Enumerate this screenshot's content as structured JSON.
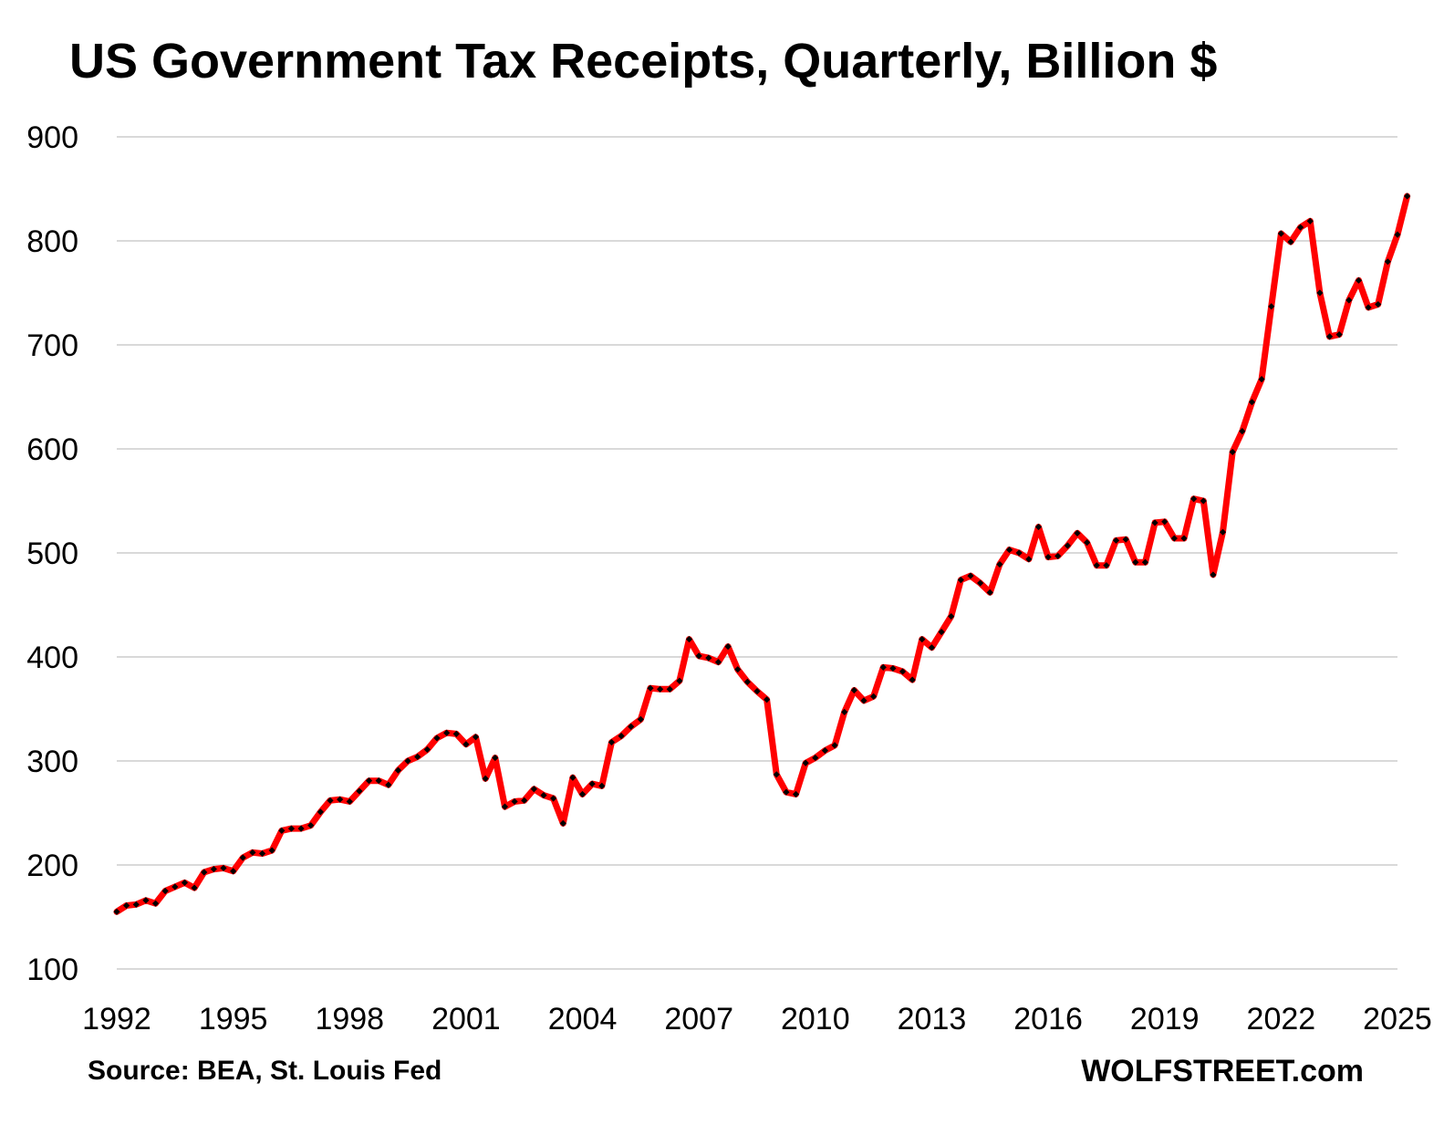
{
  "chart_data": {
    "type": "line",
    "title": "US Government Tax Receipts, Quarterly, Billion $",
    "xlabel": "",
    "ylabel": "",
    "ylim": [
      100,
      900
    ],
    "yticks": [
      "100",
      "200",
      "300",
      "400",
      "500",
      "600",
      "700",
      "800",
      "900"
    ],
    "xticks": [
      "1992",
      "1995",
      "1998",
      "2001",
      "2004",
      "2007",
      "2010",
      "2013",
      "2016",
      "2019",
      "2022",
      "2025"
    ],
    "x_start": "1992 Q1",
    "x_end": "2025 Q1",
    "grid": "horizontal",
    "line_color": "#ff0000",
    "marker_color": "#000000",
    "series": [
      {
        "values": [
          155,
          161,
          162,
          166,
          163,
          175,
          179,
          183,
          178,
          193,
          196,
          197,
          194,
          207,
          212,
          211,
          214,
          233,
          235,
          235,
          238,
          251,
          262,
          263,
          261,
          271,
          281,
          281,
          277,
          291,
          300,
          304,
          311,
          322,
          327,
          326,
          316,
          323,
          283,
          303,
          256,
          261,
          262,
          273,
          267,
          264,
          240,
          284,
          268,
          278,
          276,
          318,
          324,
          333,
          340,
          370,
          369,
          369,
          377,
          417,
          401,
          399,
          395,
          410,
          388,
          376,
          367,
          359,
          287,
          270,
          268,
          298,
          303,
          310,
          315,
          347,
          368,
          358,
          362,
          390,
          389,
          386,
          378,
          417,
          409,
          424,
          439,
          474,
          478,
          471,
          462,
          489,
          503,
          500,
          494,
          525,
          496,
          497,
          507,
          519,
          510,
          488,
          488,
          512,
          513,
          491,
          491,
          529,
          530,
          514,
          514,
          552,
          550,
          479,
          520,
          597,
          617,
          645,
          667,
          737,
          807,
          799,
          813,
          819,
          750,
          708,
          710,
          743,
          762,
          736,
          739,
          780,
          806,
          843
        ]
      }
    ]
  },
  "footer": {
    "source": "Source: BEA, St. Louis Fed",
    "brand": "WOLFSTREET.com"
  }
}
